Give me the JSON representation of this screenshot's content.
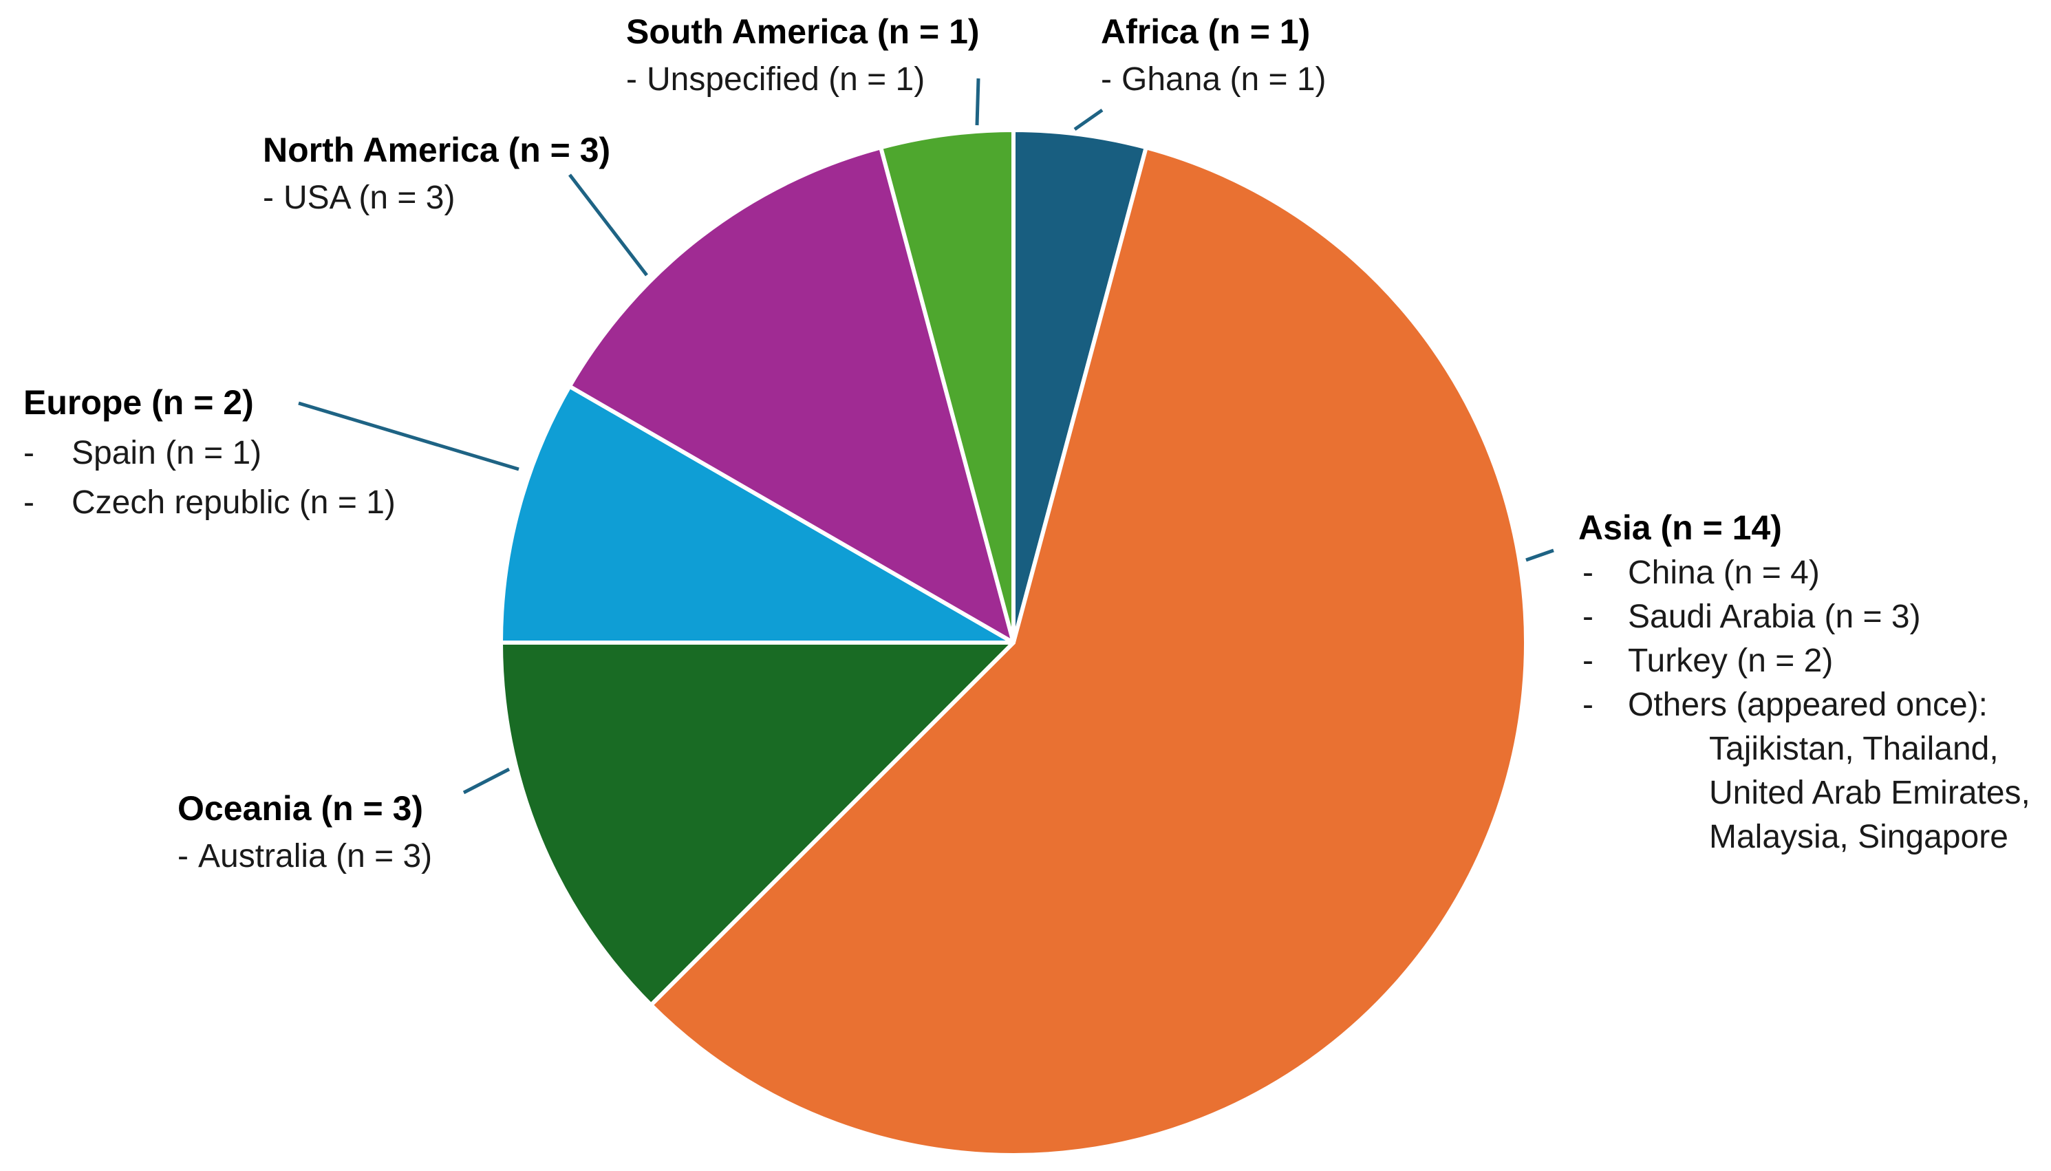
{
  "chart_data": {
    "type": "pie",
    "slices": [
      {
        "name": "Africa",
        "value": 1,
        "color": "#185e80",
        "title": "Africa (n = 1)",
        "lines": [
          {
            "dash": "-",
            "text": "Ghana (n = 1)"
          }
        ]
      },
      {
        "name": "Asia",
        "value": 14,
        "color": "#e97132",
        "title": "Asia (n = 14)",
        "lines": [
          {
            "dash": "-",
            "text": "China (n = 4)"
          },
          {
            "dash": "-",
            "text": "Saudi Arabia (n = 3)"
          },
          {
            "dash": "-",
            "text": "Turkey (n = 2)"
          },
          {
            "dash": "-",
            "text": "Others (appeared once):"
          },
          {
            "dash": "",
            "text": "Tajikistan, Thailand,"
          },
          {
            "dash": "",
            "text": "United Arab Emirates,"
          },
          {
            "dash": "",
            "text": "Malaysia, Singapore"
          }
        ]
      },
      {
        "name": "Oceania",
        "value": 3,
        "color": "#196b24",
        "title": "Oceania (n = 3)",
        "lines": [
          {
            "dash": "-",
            "text": "Australia (n = 3)"
          }
        ]
      },
      {
        "name": "Europe",
        "value": 2,
        "color": "#0f9ed5",
        "title": "Europe (n = 2)",
        "lines": [
          {
            "dash": "-",
            "text": "Spain (n = 1)"
          },
          {
            "dash": "-",
            "text": "Czech republic (n = 1)"
          }
        ]
      },
      {
        "name": "North America",
        "value": 3,
        "color": "#a02b93",
        "title": "North America (n = 3)",
        "lines": [
          {
            "dash": "-",
            "text": "USA (n = 3)"
          }
        ]
      },
      {
        "name": "South America",
        "value": 1,
        "color": "#4ea72e",
        "title": "South America (n = 1)",
        "lines": [
          {
            "dash": "-",
            "text": "Unspecified (n = 1)"
          }
        ]
      }
    ],
    "start_angle_deg": 0,
    "direction": "clockwise",
    "leader_color": "#1e6384"
  }
}
